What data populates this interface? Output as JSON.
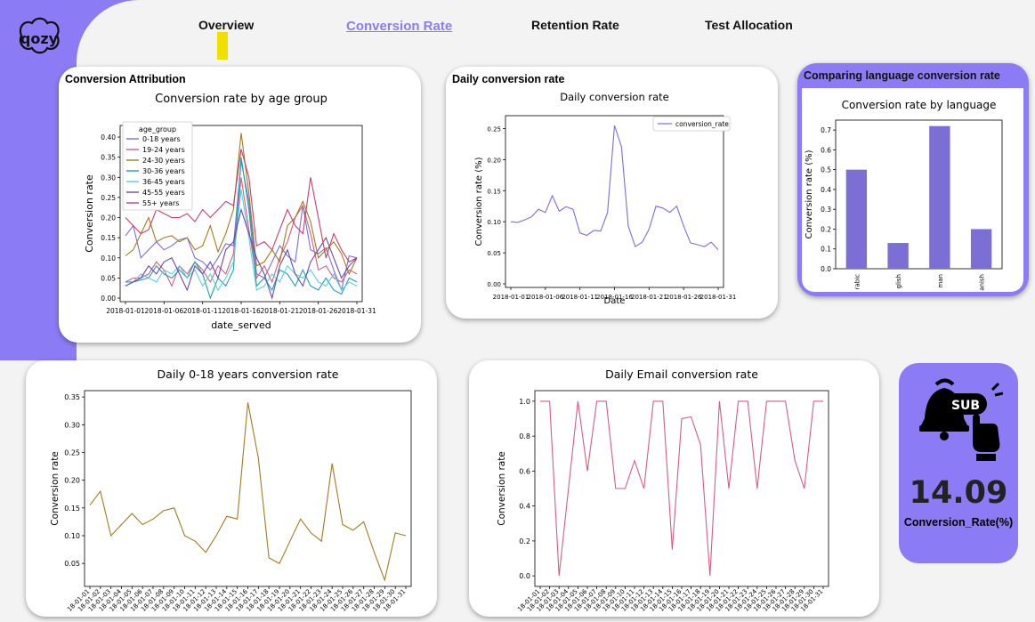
{
  "nav": {
    "tabs": [
      {
        "label": "Overview",
        "active": false
      },
      {
        "label": "Conversion Rate",
        "active": true
      },
      {
        "label": "Retention Rate",
        "active": false
      },
      {
        "label": "Test Allocation",
        "active": false
      }
    ]
  },
  "logo": {
    "icon": "qozy-logo"
  },
  "colors": {
    "accent": "#8b7cf6",
    "marker": "#f0e000",
    "bar": "#7b6fd6",
    "line_lang": "#7b6fd6",
    "line_age": "#a07c22",
    "line_email": "#d06080"
  },
  "cards": {
    "attribution": {
      "title": "Conversion Attribution"
    },
    "daily": {
      "title": "Daily conversion rate"
    },
    "language": {
      "title": "Comparing language conversion rate"
    }
  },
  "kpi": {
    "value": "14.09",
    "label": "Conversion_Rate(%)",
    "icon": "subscribe-bell-icon"
  },
  "chart_data": [
    {
      "id": "age",
      "type": "line",
      "title": "Conversion rate by age group",
      "xlabel": "date_served",
      "ylabel": "Conversion rate",
      "ylim": [
        0,
        0.42
      ],
      "yticks": [
        "0.00",
        "0.05",
        "0.10",
        "0.15",
        "0.20",
        "0.25",
        "0.30",
        "0.35",
        "0.40"
      ],
      "xticks": [
        "2018-01-01",
        "2018-01-06",
        "2018-01-11",
        "2018-01-16",
        "2018-01-21",
        "2018-01-26",
        "2018-01-31"
      ],
      "legend_title": "age_group",
      "legend_position": "top-left",
      "x_count": 31,
      "series": [
        {
          "name": "0-18 years",
          "color": "#7b6fd6",
          "values": [
            0.155,
            0.18,
            0.1,
            0.12,
            0.14,
            0.12,
            0.13,
            0.145,
            0.15,
            0.1,
            0.09,
            0.07,
            0.1,
            0.135,
            0.13,
            0.34,
            0.24,
            0.06,
            0.05,
            0.09,
            0.13,
            0.105,
            0.09,
            0.23,
            0.12,
            0.11,
            0.125,
            0.07,
            0.02,
            0.105,
            0.1
          ]
        },
        {
          "name": "19-24 years",
          "color": "#d06080",
          "values": [
            0.04,
            0.05,
            0.05,
            0.06,
            0.09,
            0.07,
            0.03,
            0.08,
            0.06,
            0.09,
            0.07,
            0.04,
            0.08,
            0.06,
            0.11,
            0.3,
            0.17,
            0.05,
            0.08,
            0.04,
            0.1,
            0.14,
            0.2,
            0.23,
            0.16,
            0.07,
            0.08,
            0.05,
            0.04,
            0.07,
            0.06
          ]
        },
        {
          "name": "24-30 years",
          "color": "#a07c22",
          "values": [
            0.105,
            0.12,
            0.16,
            0.2,
            0.14,
            0.15,
            0.155,
            0.14,
            0.15,
            0.12,
            0.13,
            0.18,
            0.115,
            0.16,
            0.22,
            0.41,
            0.26,
            0.08,
            0.09,
            0.12,
            0.09,
            0.18,
            0.2,
            0.24,
            0.19,
            0.1,
            0.12,
            0.14,
            0.11,
            0.06,
            0.1
          ]
        },
        {
          "name": "30-36 years",
          "color": "#22a0b0",
          "values": [
            0.04,
            0.04,
            0.045,
            0.05,
            0.08,
            0.06,
            0.05,
            0.07,
            0.05,
            0.09,
            0.06,
            0.0,
            0.05,
            0.03,
            0.07,
            0.35,
            0.22,
            0.03,
            0.05,
            0.02,
            0.07,
            0.06,
            0.03,
            0.07,
            0.03,
            0.02,
            0.05,
            0.02,
            0.01,
            0.05,
            0.04
          ]
        },
        {
          "name": "36-45 years",
          "color": "#5fd0d0",
          "values": [
            0.03,
            0.04,
            0.06,
            0.05,
            0.04,
            0.07,
            0.06,
            0.08,
            0.05,
            0.07,
            0.03,
            0.06,
            0.02,
            0.05,
            0.09,
            0.27,
            0.15,
            0.02,
            0.03,
            0.06,
            0.04,
            0.08,
            0.06,
            0.05,
            0.07,
            0.04,
            0.03,
            0.06,
            0.02,
            0.04,
            0.03
          ]
        },
        {
          "name": "45-55 years",
          "color": "#6a4aa8",
          "values": [
            0.03,
            0.04,
            0.05,
            0.08,
            0.06,
            0.09,
            0.1,
            0.06,
            0.02,
            0.08,
            0.06,
            0.09,
            0.05,
            0.12,
            0.14,
            0.22,
            0.16,
            0.1,
            0.06,
            0.0,
            0.08,
            0.12,
            0.06,
            0.03,
            0.09,
            0.12,
            0.15,
            0.1,
            0.05,
            0.08,
            0.1
          ]
        },
        {
          "name": "55+ years",
          "color": "#c04070",
          "values": [
            0.2,
            0.18,
            0.16,
            0.17,
            0.22,
            0.21,
            0.2,
            0.2,
            0.21,
            0.19,
            0.22,
            0.2,
            0.22,
            0.24,
            0.23,
            0.37,
            0.3,
            0.13,
            0.14,
            0.12,
            0.17,
            0.22,
            0.18,
            0.16,
            0.3,
            0.2,
            0.1,
            0.16,
            0.12,
            0.09,
            0.1
          ]
        }
      ]
    },
    {
      "id": "daily",
      "type": "line",
      "title": "Daily conversion rate",
      "xlabel": "Date",
      "ylabel": "Conversion rate (%)",
      "ylim": [
        0,
        0.265
      ],
      "yticks": [
        "0.00",
        "0.05",
        "0.10",
        "0.15",
        "0.20",
        "0.25"
      ],
      "xticks": [
        "2018-01-01",
        "2018-01-06",
        "2018-01-11",
        "2018-01-16",
        "2018-01-21",
        "2018-01-26",
        "2018-01-31"
      ],
      "legend_position": "top-right",
      "series": [
        {
          "name": "conversion_rate",
          "color": "#7b6fd6",
          "values": [
            0.1,
            0.099,
            0.103,
            0.108,
            0.12,
            0.115,
            0.142,
            0.117,
            0.124,
            0.12,
            0.082,
            0.078,
            0.086,
            0.085,
            0.115,
            0.255,
            0.221,
            0.093,
            0.06,
            0.067,
            0.088,
            0.125,
            0.122,
            0.115,
            0.125,
            0.093,
            0.066,
            0.063,
            0.06,
            0.067,
            0.055
          ]
        }
      ]
    },
    {
      "id": "language",
      "type": "bar",
      "title": "Conversion rate by language",
      "ylabel": "Conversion rate (%)",
      "ylim": [
        0,
        0.75
      ],
      "yticks": [
        "0.0",
        "0.1",
        "0.2",
        "0.3",
        "0.4",
        "0.5",
        "0.6",
        "0.7"
      ],
      "categories": [
        "Arabic",
        "English",
        "German",
        "Spanish"
      ],
      "category_labels_visible": [
        "rabic",
        "glish",
        "man",
        "anish"
      ],
      "values": [
        0.5,
        0.13,
        0.72,
        0.2
      ]
    },
    {
      "id": "age018",
      "type": "line",
      "title": "Daily 0-18 years conversion rate",
      "ylabel": "Conversion rate",
      "ylim": [
        0.015,
        0.355
      ],
      "yticks": [
        "0.05",
        "0.10",
        "0.15",
        "0.20",
        "0.25",
        "0.30",
        "0.35"
      ],
      "x_labels": [
        "18-01-01",
        "18-01-02",
        "18-01-03",
        "18-01-04",
        "18-01-05",
        "18-01-06",
        "18-01-07",
        "18-01-08",
        "18-01-09",
        "18-01-10",
        "18-01-11",
        "18-01-12",
        "18-01-13",
        "18-01-14",
        "18-01-15",
        "18-01-16",
        "18-01-17",
        "18-01-18",
        "18-01-19",
        "18-01-20",
        "18-01-21",
        "18-01-22",
        "18-01-23",
        "18-01-24",
        "18-01-25",
        "18-01-26",
        "18-01-27",
        "18-01-28",
        "18-01-29",
        "18-01-30",
        "18-01-31"
      ],
      "series": [
        {
          "name": "0-18 years",
          "color": "#a07c22",
          "values": [
            0.155,
            0.18,
            0.1,
            0.12,
            0.14,
            0.12,
            0.13,
            0.145,
            0.15,
            0.1,
            0.09,
            0.07,
            0.1,
            0.135,
            0.13,
            0.34,
            0.24,
            0.06,
            0.05,
            0.09,
            0.13,
            0.105,
            0.09,
            0.23,
            0.12,
            0.11,
            0.125,
            0.07,
            0.02,
            0.105,
            0.1
          ]
        }
      ]
    },
    {
      "id": "email",
      "type": "line",
      "title": "Daily Email conversion rate",
      "ylabel": "Conversion rate",
      "ylim": [
        -0.04,
        1.04
      ],
      "yticks": [
        "0.0",
        "0.2",
        "0.4",
        "0.6",
        "0.8",
        "1.0"
      ],
      "x_labels": [
        "18-01-01",
        "18-01-02",
        "18-01-03",
        "18-01-04",
        "18-01-05",
        "18-01-06",
        "18-01-07",
        "18-01-08",
        "18-01-09",
        "18-01-10",
        "18-01-11",
        "18-01-12",
        "18-01-13",
        "18-01-14",
        "18-01-15",
        "18-01-16",
        "18-01-17",
        "18-01-18",
        "18-01-19",
        "18-01-20",
        "18-01-21",
        "18-01-22",
        "18-01-23",
        "18-01-24",
        "18-01-25",
        "18-01-26",
        "18-01-27",
        "18-01-28",
        "18-01-29",
        "18-01-30",
        "18-01-31"
      ],
      "series": [
        {
          "name": "Email",
          "color": "#d06080",
          "values": [
            1.0,
            1.0,
            0.0,
            0.5,
            1.0,
            0.6,
            1.0,
            1.0,
            0.5,
            0.5,
            0.66,
            0.5,
            1.0,
            1.0,
            0.15,
            0.9,
            0.91,
            0.75,
            0.0,
            1.0,
            0.5,
            1.0,
            1.0,
            0.5,
            1.0,
            1.0,
            1.0,
            0.66,
            0.5,
            1.0,
            1.0
          ]
        }
      ]
    }
  ]
}
